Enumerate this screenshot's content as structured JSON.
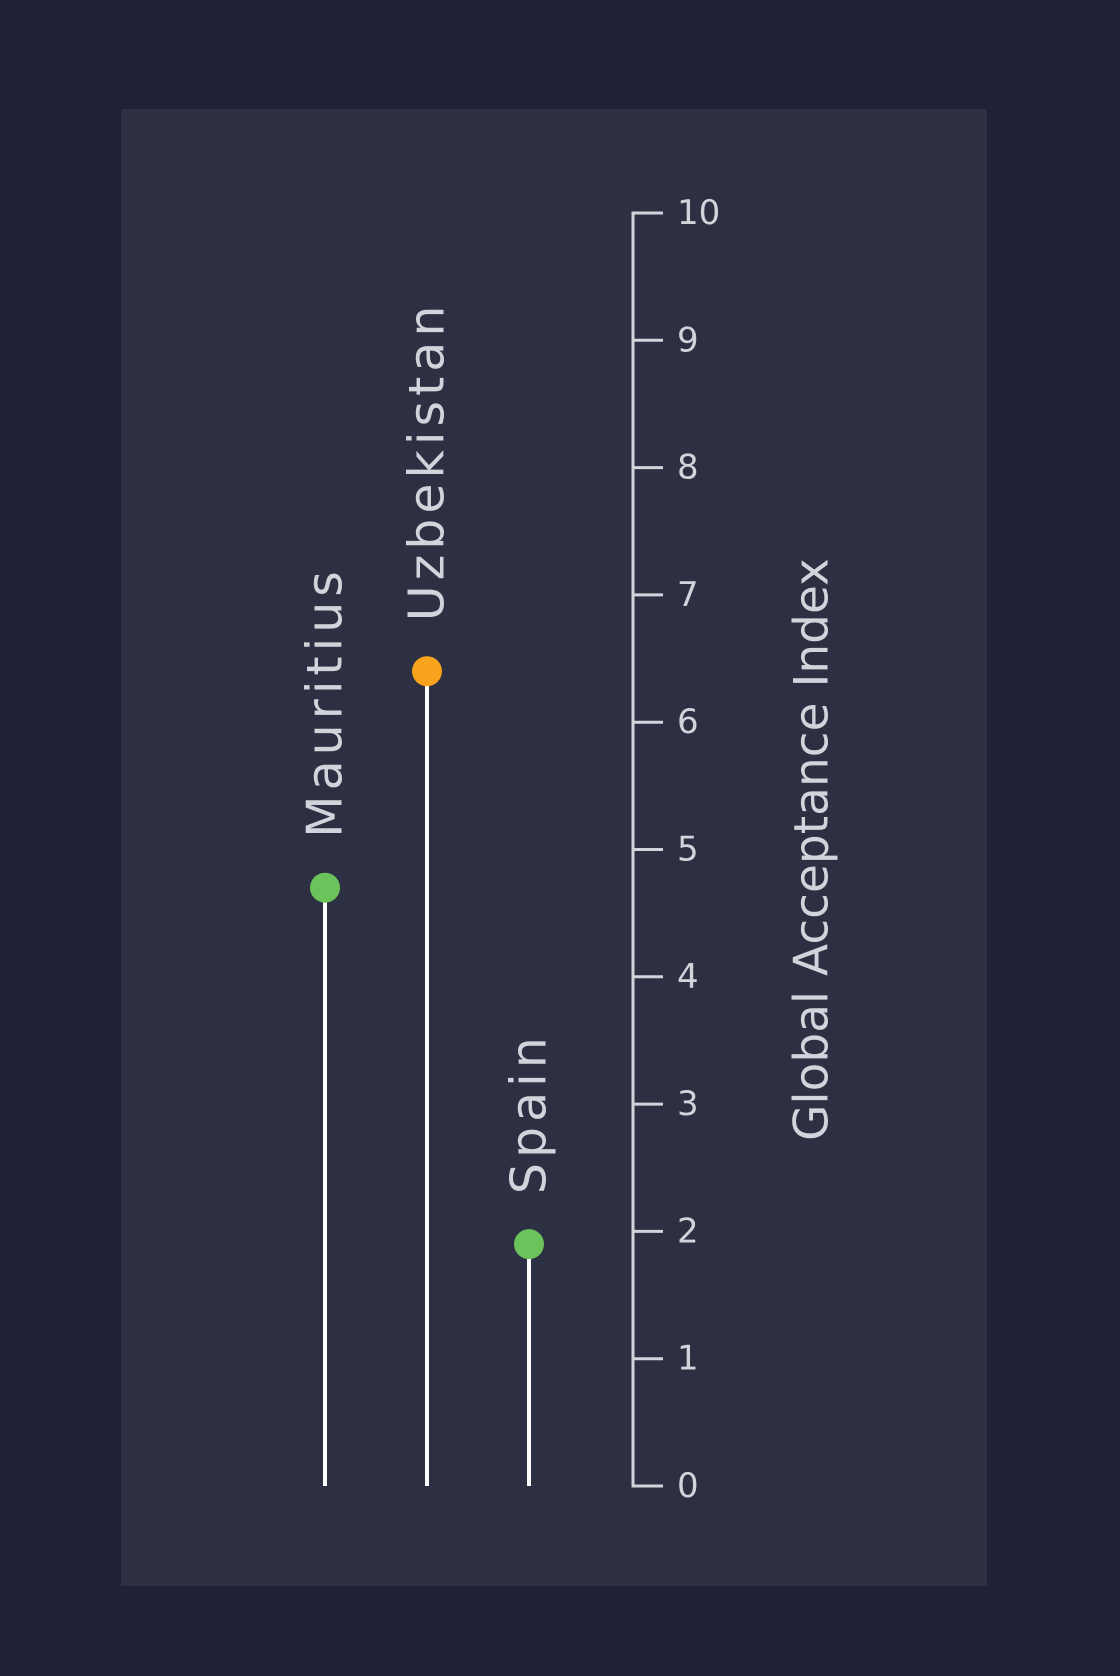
{
  "chart_data": {
    "type": "lollipop",
    "orientation": "vertical",
    "title": "",
    "ylabel": "Global Acceptance Index",
    "ylim": [
      0,
      10
    ],
    "ticks": [
      0,
      1,
      2,
      3,
      4,
      5,
      6,
      7,
      8,
      9,
      10
    ],
    "categories": [
      "Mauritius",
      "Uzbekistan",
      "Spain"
    ],
    "values": [
      4.7,
      6.4,
      1.9
    ],
    "point_colors": [
      "#6cc35b",
      "#f8a21d",
      "#6cc35b"
    ],
    "stem_color": "#ffffff",
    "grid": false,
    "legend": "none"
  }
}
